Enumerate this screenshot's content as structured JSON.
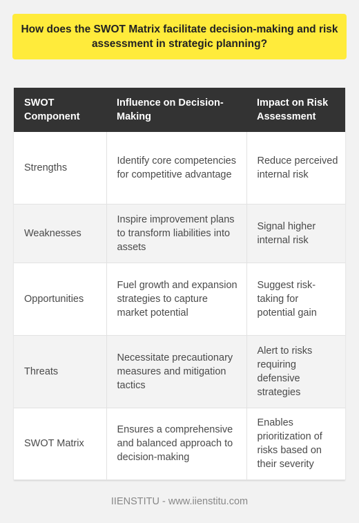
{
  "question": "How does the SWOT Matrix facilitate decision-making and risk assessment in strategic planning?",
  "table": {
    "headers": [
      "SWOT Component",
      "Influence on Decision-Making",
      "Impact on Risk Assessment"
    ],
    "rows": [
      [
        "Strengths",
        "Identify core competencies for competitive advantage",
        "Reduce perceived internal risk"
      ],
      [
        "Weaknesses",
        "Inspire improvement plans to transform liabilities into assets",
        "Signal higher internal risk"
      ],
      [
        "Opportunities",
        "Fuel growth and expansion strategies to capture market potential",
        "Suggest risk-taking for potential gain"
      ],
      [
        "Threats",
        "Necessitate precautionary measures and mitigation tactics",
        "Alert to risks requiring defensive strategies"
      ],
      [
        "SWOT Matrix",
        "Ensures a comprehensive and balanced approach to decision-making",
        "Enables prioritization of risks based on their severity"
      ]
    ]
  },
  "footer": "IIENSTITU - www.iienstitu.com",
  "colors": {
    "question_bg": "#ffeb3b",
    "header_bg": "#333333",
    "page_bg": "#f2f2f2"
  }
}
